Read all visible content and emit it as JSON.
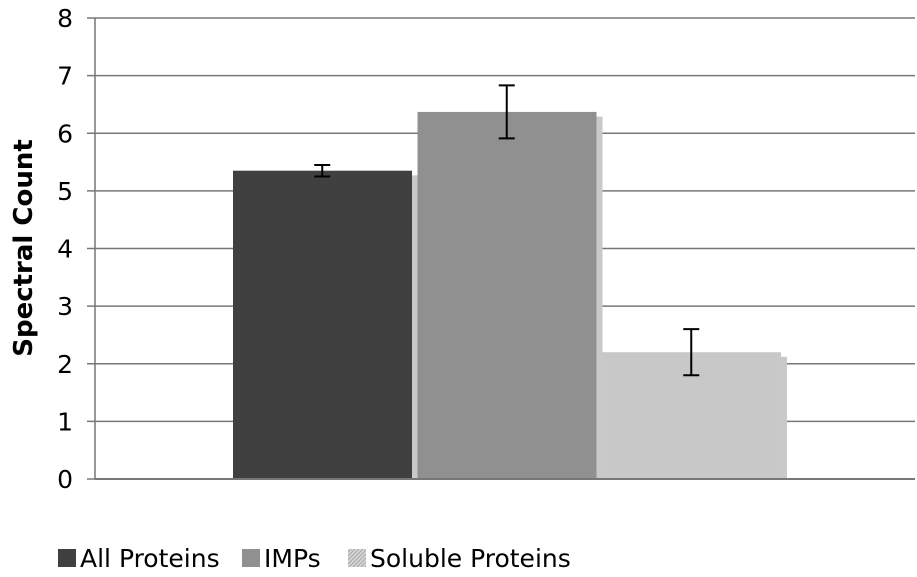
{
  "chart_data": {
    "type": "bar",
    "title": "",
    "xlabel": "",
    "ylabel": "Spectral Count",
    "ylim": [
      0,
      8
    ],
    "yticks": [
      0,
      1,
      2,
      3,
      4,
      5,
      6,
      7,
      8
    ],
    "grid": true,
    "legend_position": "bottom",
    "series": [
      {
        "name": "All Proteins",
        "value": 5.35,
        "error": 0.1,
        "color": "#404040",
        "pattern": "solid"
      },
      {
        "name": "IMPs",
        "value": 6.37,
        "error": 0.46,
        "color": "#909090",
        "pattern": "solid"
      },
      {
        "name": "Soluble Proteins",
        "value": 2.2,
        "error": 0.4,
        "color": "#c8c8c8",
        "pattern": "hatched"
      }
    ]
  }
}
